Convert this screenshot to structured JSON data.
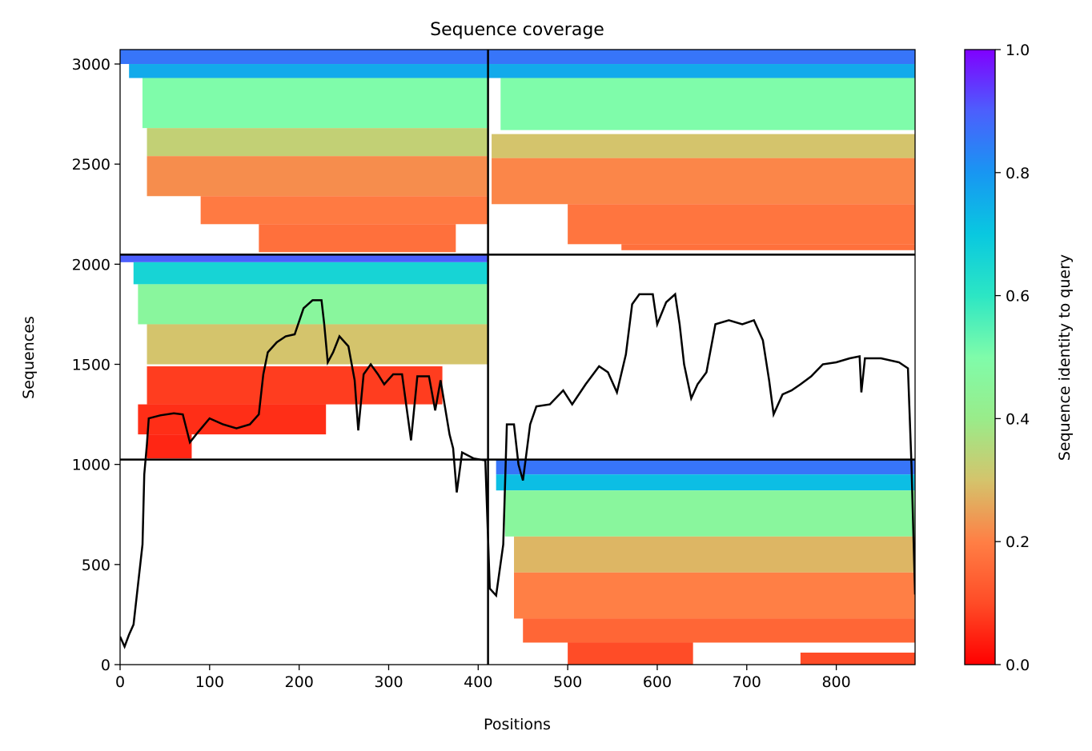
{
  "chart_data": {
    "type": "heatmap",
    "title": "Sequence coverage",
    "xlabel": "Positions",
    "ylabel": "Sequences",
    "xlim": [
      0,
      888
    ],
    "ylim": [
      0,
      3072
    ],
    "x_ticks": [
      0,
      100,
      200,
      300,
      400,
      500,
      600,
      700,
      800
    ],
    "y_ticks": [
      0,
      500,
      1000,
      1500,
      2000,
      2500,
      3000
    ],
    "chain_boundary_x": 411,
    "block_boundaries_y": [
      1024,
      2048
    ],
    "colorbar": {
      "label": "Sequence identity to query",
      "range": [
        0.0,
        1.0
      ],
      "ticks": [
        0.0,
        0.2,
        0.4,
        0.6,
        0.8,
        1.0
      ],
      "colormap": "rainbow_r"
    },
    "blocks": [
      {
        "x_range": [
          0,
          411
        ],
        "y_range": [
          2048,
          3072
        ],
        "bands": [
          {
            "y": [
              3000,
              3072
            ],
            "x": [
              0,
              411
            ],
            "identity": 0.86
          },
          {
            "y": [
              2930,
              3000
            ],
            "x": [
              10,
              411
            ],
            "identity": 0.76
          },
          {
            "y": [
              2680,
              2930
            ],
            "x": [
              25,
              411
            ],
            "identity": 0.5
          },
          {
            "y": [
              2540,
              2680
            ],
            "x": [
              30,
              411
            ],
            "identity": 0.33
          },
          {
            "y": [
              2340,
              2540
            ],
            "x": [
              30,
              411
            ],
            "identity": 0.22
          },
          {
            "y": [
              2200,
              2340
            ],
            "x": [
              90,
              411
            ],
            "identity": 0.19
          },
          {
            "y": [
              2060,
              2200
            ],
            "x": [
              155,
              375
            ],
            "identity": 0.17
          }
        ]
      },
      {
        "x_range": [
          411,
          888
        ],
        "y_range": [
          2048,
          3072
        ],
        "bands": [
          {
            "y": [
              3000,
              3072
            ],
            "x": [
              411,
              888
            ],
            "identity": 0.86
          },
          {
            "y": [
              2930,
              3000
            ],
            "x": [
              411,
              888
            ],
            "identity": 0.76
          },
          {
            "y": [
              2670,
              2930
            ],
            "x": [
              425,
              888
            ],
            "identity": 0.5
          },
          {
            "y": [
              2530,
              2650
            ],
            "x": [
              415,
              888
            ],
            "identity": 0.3
          },
          {
            "y": [
              2300,
              2530
            ],
            "x": [
              415,
              888
            ],
            "identity": 0.21
          },
          {
            "y": [
              2100,
              2300
            ],
            "x": [
              500,
              888
            ],
            "identity": 0.18
          },
          {
            "y": [
              2070,
              2100
            ],
            "x": [
              560,
              888
            ],
            "identity": 0.17
          }
        ]
      },
      {
        "x_range": [
          0,
          411
        ],
        "y_range": [
          1024,
          2048
        ],
        "bands": [
          {
            "y": [
              2010,
              2048
            ],
            "x": [
              0,
              411
            ],
            "identity": 0.9
          },
          {
            "y": [
              1900,
              2010
            ],
            "x": [
              15,
              411
            ],
            "identity": 0.66
          },
          {
            "y": [
              1700,
              1900
            ],
            "x": [
              20,
              411
            ],
            "identity": 0.46
          },
          {
            "y": [
              1500,
              1700
            ],
            "x": [
              30,
              411
            ],
            "identity": 0.3
          },
          {
            "y": [
              1300,
              1490
            ],
            "x": [
              30,
              360
            ],
            "identity": 0.08
          },
          {
            "y": [
              1150,
              1300
            ],
            "x": [
              20,
              230
            ],
            "identity": 0.06
          },
          {
            "y": [
              1030,
              1150
            ],
            "x": [
              30,
              80
            ],
            "identity": 0.05
          }
        ]
      },
      {
        "x_range": [
          411,
          888
        ],
        "y_range": [
          0,
          1024
        ],
        "bands": [
          {
            "y": [
              950,
              1024
            ],
            "x": [
              420,
              888
            ],
            "identity": 0.86
          },
          {
            "y": [
              870,
              950
            ],
            "x": [
              420,
              888
            ],
            "identity": 0.72
          },
          {
            "y": [
              640,
              870
            ],
            "x": [
              430,
              888
            ],
            "identity": 0.46
          },
          {
            "y": [
              460,
              640
            ],
            "x": [
              440,
              888
            ],
            "identity": 0.28
          },
          {
            "y": [
              230,
              460
            ],
            "x": [
              440,
              888
            ],
            "identity": 0.2
          },
          {
            "y": [
              110,
              230
            ],
            "x": [
              450,
              888
            ],
            "identity": 0.15
          },
          {
            "y": [
              0,
              110
            ],
            "x": [
              500,
              640
            ],
            "identity": 0.1
          },
          {
            "y": [
              0,
              60
            ],
            "x": [
              760,
              888
            ],
            "identity": 0.1
          }
        ]
      }
    ],
    "coverage_line": [
      [
        0,
        140
      ],
      [
        5,
        90
      ],
      [
        10,
        150
      ],
      [
        15,
        200
      ],
      [
        20,
        400
      ],
      [
        25,
        600
      ],
      [
        27,
        950
      ],
      [
        30,
        1100
      ],
      [
        32,
        1230
      ],
      [
        45,
        1245
      ],
      [
        60,
        1255
      ],
      [
        70,
        1250
      ],
      [
        78,
        1110
      ],
      [
        85,
        1150
      ],
      [
        100,
        1230
      ],
      [
        115,
        1200
      ],
      [
        130,
        1180
      ],
      [
        145,
        1200
      ],
      [
        155,
        1250
      ],
      [
        160,
        1450
      ],
      [
        165,
        1560
      ],
      [
        175,
        1610
      ],
      [
        185,
        1640
      ],
      [
        195,
        1650
      ],
      [
        205,
        1780
      ],
      [
        215,
        1820
      ],
      [
        225,
        1820
      ],
      [
        228,
        1700
      ],
      [
        232,
        1510
      ],
      [
        238,
        1560
      ],
      [
        245,
        1640
      ],
      [
        255,
        1590
      ],
      [
        262,
        1420
      ],
      [
        266,
        1170
      ],
      [
        272,
        1450
      ],
      [
        280,
        1500
      ],
      [
        288,
        1450
      ],
      [
        295,
        1400
      ],
      [
        305,
        1450
      ],
      [
        315,
        1450
      ],
      [
        325,
        1120
      ],
      [
        332,
        1440
      ],
      [
        345,
        1440
      ],
      [
        352,
        1270
      ],
      [
        358,
        1420
      ],
      [
        368,
        1150
      ],
      [
        372,
        1080
      ],
      [
        376,
        860
      ],
      [
        382,
        1060
      ],
      [
        395,
        1030
      ],
      [
        408,
        1020
      ],
      [
        413,
        380
      ],
      [
        420,
        345
      ],
      [
        428,
        600
      ],
      [
        432,
        1200
      ],
      [
        440,
        1200
      ],
      [
        445,
        1000
      ],
      [
        450,
        920
      ],
      [
        458,
        1200
      ],
      [
        465,
        1290
      ],
      [
        480,
        1300
      ],
      [
        495,
        1370
      ],
      [
        505,
        1300
      ],
      [
        520,
        1400
      ],
      [
        535,
        1490
      ],
      [
        545,
        1460
      ],
      [
        555,
        1360
      ],
      [
        565,
        1550
      ],
      [
        572,
        1800
      ],
      [
        580,
        1850
      ],
      [
        595,
        1850
      ],
      [
        600,
        1700
      ],
      [
        610,
        1810
      ],
      [
        620,
        1850
      ],
      [
        625,
        1700
      ],
      [
        630,
        1500
      ],
      [
        638,
        1330
      ],
      [
        645,
        1400
      ],
      [
        655,
        1460
      ],
      [
        665,
        1700
      ],
      [
        680,
        1720
      ],
      [
        695,
        1700
      ],
      [
        708,
        1720
      ],
      [
        718,
        1620
      ],
      [
        725,
        1420
      ],
      [
        730,
        1250
      ],
      [
        740,
        1350
      ],
      [
        750,
        1370
      ],
      [
        760,
        1400
      ],
      [
        772,
        1440
      ],
      [
        785,
        1500
      ],
      [
        800,
        1510
      ],
      [
        815,
        1530
      ],
      [
        826,
        1540
      ],
      [
        828,
        1360
      ],
      [
        832,
        1530
      ],
      [
        850,
        1530
      ],
      [
        870,
        1510
      ],
      [
        880,
        1480
      ],
      [
        884,
        1000
      ],
      [
        888,
        350
      ]
    ]
  }
}
